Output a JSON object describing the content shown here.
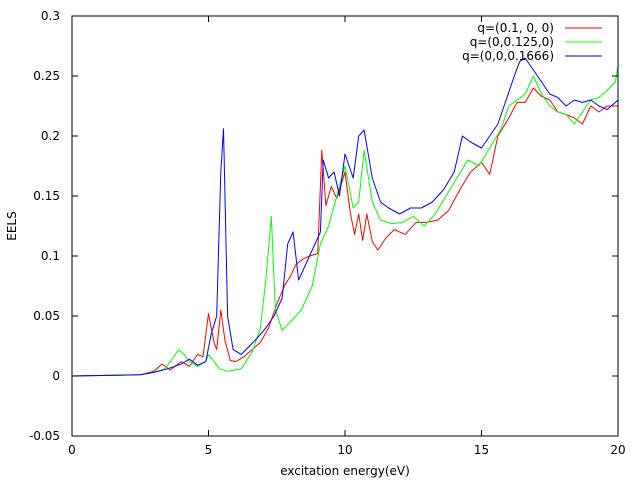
{
  "chart_data": {
    "type": "line",
    "title": "",
    "xlabel": "excitation energy(eV)",
    "ylabel": "EELS",
    "xlim": [
      0,
      20
    ],
    "ylim": [
      -0.05,
      0.3
    ],
    "xticks": [
      0,
      5,
      10,
      15,
      20
    ],
    "xtick_labels": [
      "0",
      "5",
      "10",
      "15",
      "20"
    ],
    "yticks": [
      -0.05,
      0,
      0.05,
      0.1,
      0.15,
      0.2,
      0.25,
      0.3
    ],
    "ytick_labels": [
      "-0.05",
      "0",
      "0.05",
      "0.1",
      "0.15",
      "0.2",
      "0.25",
      "0.3"
    ],
    "grid": false,
    "legend_position": "top-right",
    "series": [
      {
        "name": "q=(0.1, 0, 0)",
        "color": "#ff0000",
        "points": [
          [
            0,
            0
          ],
          [
            2.5,
            0.001
          ],
          [
            3.0,
            0.004
          ],
          [
            3.3,
            0.01
          ],
          [
            3.6,
            0.005
          ],
          [
            4.0,
            0.012
          ],
          [
            4.3,
            0.008
          ],
          [
            4.6,
            0.018
          ],
          [
            4.8,
            0.016
          ],
          [
            5.0,
            0.052
          ],
          [
            5.2,
            0.028
          ],
          [
            5.3,
            0.022
          ],
          [
            5.45,
            0.055
          ],
          [
            5.6,
            0.03
          ],
          [
            5.8,
            0.013
          ],
          [
            6.0,
            0.012
          ],
          [
            6.3,
            0.016
          ],
          [
            6.6,
            0.022
          ],
          [
            6.9,
            0.028
          ],
          [
            7.2,
            0.04
          ],
          [
            7.5,
            0.06
          ],
          [
            7.8,
            0.076
          ],
          [
            8.0,
            0.083
          ],
          [
            8.2,
            0.093
          ],
          [
            8.5,
            0.098
          ],
          [
            8.7,
            0.1
          ],
          [
            9.0,
            0.102
          ],
          [
            9.15,
            0.188
          ],
          [
            9.3,
            0.142
          ],
          [
            9.5,
            0.158
          ],
          [
            9.7,
            0.148
          ],
          [
            10.0,
            0.17
          ],
          [
            10.2,
            0.135
          ],
          [
            10.35,
            0.118
          ],
          [
            10.5,
            0.135
          ],
          [
            10.65,
            0.113
          ],
          [
            10.8,
            0.135
          ],
          [
            11.0,
            0.112
          ],
          [
            11.2,
            0.105
          ],
          [
            11.5,
            0.115
          ],
          [
            11.8,
            0.122
          ],
          [
            12.2,
            0.118
          ],
          [
            12.6,
            0.128
          ],
          [
            13.0,
            0.128
          ],
          [
            13.4,
            0.13
          ],
          [
            13.8,
            0.138
          ],
          [
            14.2,
            0.155
          ],
          [
            14.6,
            0.17
          ],
          [
            15.0,
            0.178
          ],
          [
            15.3,
            0.168
          ],
          [
            15.6,
            0.2
          ],
          [
            16.0,
            0.215
          ],
          [
            16.3,
            0.228
          ],
          [
            16.6,
            0.228
          ],
          [
            16.9,
            0.24
          ],
          [
            17.2,
            0.233
          ],
          [
            17.5,
            0.23
          ],
          [
            17.8,
            0.22
          ],
          [
            18.1,
            0.218
          ],
          [
            18.4,
            0.215
          ],
          [
            18.7,
            0.21
          ],
          [
            19.0,
            0.225
          ],
          [
            19.3,
            0.22
          ],
          [
            19.6,
            0.225
          ],
          [
            20.0,
            0.225
          ]
        ]
      },
      {
        "name": "q=(0,0.125,0)",
        "color": "#00ff00",
        "points": [
          [
            0,
            0
          ],
          [
            2.5,
            0.001
          ],
          [
            3.0,
            0.003
          ],
          [
            3.4,
            0.006
          ],
          [
            3.7,
            0.015
          ],
          [
            3.9,
            0.022
          ],
          [
            4.1,
            0.018
          ],
          [
            4.3,
            0.012
          ],
          [
            4.6,
            0.008
          ],
          [
            4.9,
            0.012
          ],
          [
            5.0,
            0.018
          ],
          [
            5.2,
            0.012
          ],
          [
            5.4,
            0.006
          ],
          [
            5.7,
            0.004
          ],
          [
            6.2,
            0.006
          ],
          [
            6.6,
            0.02
          ],
          [
            6.9,
            0.04
          ],
          [
            7.1,
            0.08
          ],
          [
            7.3,
            0.133
          ],
          [
            7.45,
            0.055
          ],
          [
            7.7,
            0.038
          ],
          [
            8.0,
            0.045
          ],
          [
            8.4,
            0.055
          ],
          [
            8.8,
            0.075
          ],
          [
            9.1,
            0.11
          ],
          [
            9.4,
            0.125
          ],
          [
            9.7,
            0.15
          ],
          [
            10.0,
            0.175
          ],
          [
            10.3,
            0.14
          ],
          [
            10.5,
            0.145
          ],
          [
            10.7,
            0.188
          ],
          [
            11.0,
            0.145
          ],
          [
            11.3,
            0.13
          ],
          [
            11.7,
            0.127
          ],
          [
            12.1,
            0.128
          ],
          [
            12.5,
            0.133
          ],
          [
            12.9,
            0.125
          ],
          [
            13.3,
            0.135
          ],
          [
            13.7,
            0.15
          ],
          [
            14.1,
            0.165
          ],
          [
            14.5,
            0.18
          ],
          [
            14.9,
            0.175
          ],
          [
            15.3,
            0.19
          ],
          [
            15.7,
            0.205
          ],
          [
            16.0,
            0.225
          ],
          [
            16.3,
            0.23
          ],
          [
            16.6,
            0.235
          ],
          [
            16.9,
            0.25
          ],
          [
            17.2,
            0.235
          ],
          [
            17.5,
            0.225
          ],
          [
            17.8,
            0.22
          ],
          [
            18.1,
            0.218
          ],
          [
            18.4,
            0.21
          ],
          [
            18.7,
            0.22
          ],
          [
            19.0,
            0.23
          ],
          [
            19.3,
            0.232
          ],
          [
            19.6,
            0.238
          ],
          [
            19.9,
            0.245
          ],
          [
            20.0,
            0.258
          ]
        ]
      },
      {
        "name": "q=(0,0,0.1666)",
        "color": "#0000ff",
        "points": [
          [
            0,
            0
          ],
          [
            2.5,
            0.001
          ],
          [
            3.0,
            0.003
          ],
          [
            3.5,
            0.006
          ],
          [
            4.0,
            0.01
          ],
          [
            4.3,
            0.014
          ],
          [
            4.6,
            0.009
          ],
          [
            4.9,
            0.012
          ],
          [
            5.1,
            0.035
          ],
          [
            5.3,
            0.05
          ],
          [
            5.45,
            0.17
          ],
          [
            5.55,
            0.206
          ],
          [
            5.7,
            0.05
          ],
          [
            5.9,
            0.022
          ],
          [
            6.2,
            0.018
          ],
          [
            6.5,
            0.025
          ],
          [
            6.8,
            0.032
          ],
          [
            7.1,
            0.04
          ],
          [
            7.4,
            0.05
          ],
          [
            7.7,
            0.065
          ],
          [
            7.9,
            0.11
          ],
          [
            8.1,
            0.12
          ],
          [
            8.3,
            0.08
          ],
          [
            8.6,
            0.095
          ],
          [
            8.9,
            0.11
          ],
          [
            9.1,
            0.12
          ],
          [
            9.2,
            0.18
          ],
          [
            9.4,
            0.165
          ],
          [
            9.6,
            0.17
          ],
          [
            9.8,
            0.15
          ],
          [
            10.0,
            0.185
          ],
          [
            10.3,
            0.165
          ],
          [
            10.5,
            0.2
          ],
          [
            10.7,
            0.205
          ],
          [
            11.0,
            0.165
          ],
          [
            11.3,
            0.145
          ],
          [
            11.6,
            0.14
          ],
          [
            12.0,
            0.135
          ],
          [
            12.4,
            0.14
          ],
          [
            12.8,
            0.14
          ],
          [
            13.2,
            0.145
          ],
          [
            13.6,
            0.155
          ],
          [
            14.0,
            0.17
          ],
          [
            14.3,
            0.2
          ],
          [
            14.6,
            0.195
          ],
          [
            15.0,
            0.19
          ],
          [
            15.3,
            0.2
          ],
          [
            15.6,
            0.21
          ],
          [
            15.9,
            0.23
          ],
          [
            16.2,
            0.25
          ],
          [
            16.4,
            0.262
          ],
          [
            16.6,
            0.265
          ],
          [
            16.9,
            0.255
          ],
          [
            17.2,
            0.245
          ],
          [
            17.5,
            0.235
          ],
          [
            17.8,
            0.232
          ],
          [
            18.1,
            0.225
          ],
          [
            18.4,
            0.23
          ],
          [
            18.7,
            0.228
          ],
          [
            19.0,
            0.23
          ],
          [
            19.3,
            0.225
          ],
          [
            19.6,
            0.222
          ],
          [
            19.9,
            0.228
          ],
          [
            20.0,
            0.23
          ]
        ]
      }
    ]
  }
}
